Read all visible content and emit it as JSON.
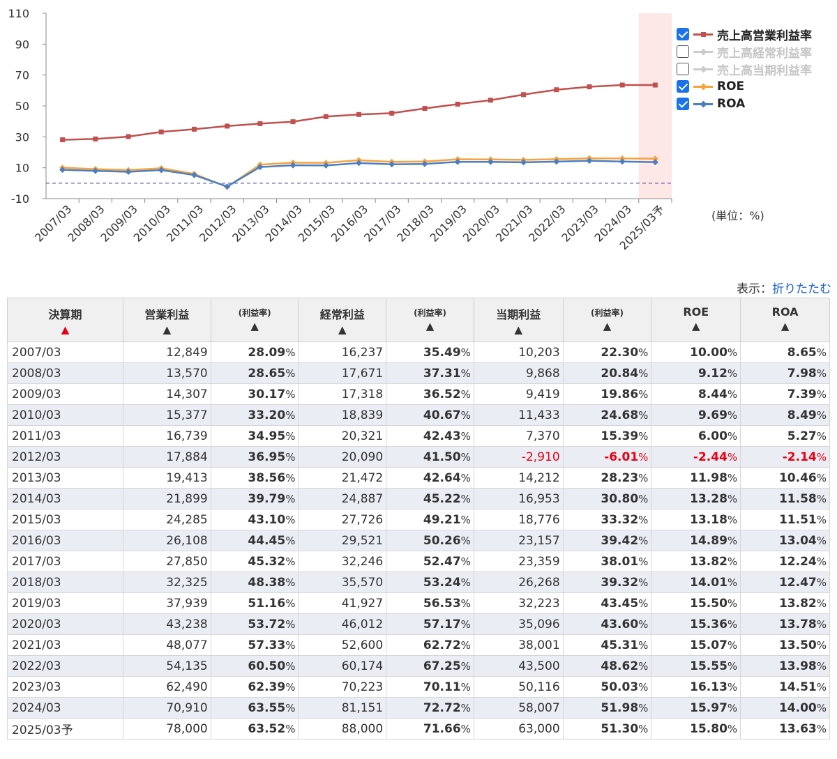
{
  "chart_data": {
    "type": "line",
    "categories": [
      "2007/03",
      "2008/03",
      "2009/03",
      "2010/03",
      "2011/03",
      "2012/03",
      "2013/03",
      "2014/03",
      "2015/03",
      "2016/03",
      "2017/03",
      "2018/03",
      "2019/03",
      "2020/03",
      "2021/03",
      "2022/03",
      "2023/03",
      "2024/03",
      "2025/03予"
    ],
    "ylim": [
      -10,
      110
    ],
    "yticks": [
      "110",
      "90",
      "70",
      "50",
      "30",
      "10",
      "-10"
    ],
    "highlight_category": "2025/03予",
    "reference_line": 0,
    "series": [
      {
        "name": "売上高営業利益率",
        "checked": true,
        "visible": true,
        "color": "#c0504d",
        "marker": "square",
        "values": [
          28.09,
          28.65,
          30.17,
          33.2,
          34.95,
          36.95,
          38.56,
          39.79,
          43.1,
          44.45,
          45.32,
          48.38,
          51.16,
          53.72,
          57.33,
          60.5,
          62.39,
          63.55,
          63.52
        ]
      },
      {
        "name": "売上高経常利益率",
        "checked": false,
        "visible": false,
        "color": "#cccccc",
        "marker": "triangle",
        "values": [
          35.49,
          37.31,
          36.52,
          40.67,
          42.43,
          41.5,
          42.64,
          45.22,
          49.21,
          50.26,
          52.47,
          53.24,
          56.53,
          57.17,
          62.72,
          67.25,
          70.11,
          72.72,
          71.66
        ]
      },
      {
        "name": "売上高当期利益率",
        "checked": false,
        "visible": false,
        "color": "#cccccc",
        "marker": "triangle",
        "values": [
          22.3,
          20.84,
          19.86,
          24.68,
          15.39,
          -6.01,
          28.23,
          30.8,
          33.32,
          39.42,
          38.01,
          39.32,
          43.45,
          43.6,
          45.31,
          48.62,
          50.03,
          51.98,
          51.3
        ]
      },
      {
        "name": "ROE",
        "checked": true,
        "visible": true,
        "color": "#f7a23b",
        "marker": "diamond",
        "values": [
          10.0,
          9.12,
          8.44,
          9.69,
          6.0,
          -2.44,
          11.98,
          13.28,
          13.18,
          14.89,
          13.82,
          14.01,
          15.5,
          15.36,
          15.07,
          15.55,
          16.13,
          15.97,
          15.8
        ]
      },
      {
        "name": "ROA",
        "checked": true,
        "visible": true,
        "color": "#4a7fc1",
        "marker": "diamond",
        "values": [
          8.65,
          7.98,
          7.39,
          8.49,
          5.27,
          -2.14,
          10.46,
          11.58,
          11.51,
          13.04,
          12.24,
          12.47,
          13.82,
          13.78,
          13.5,
          13.98,
          14.51,
          14.0,
          13.63
        ]
      }
    ]
  },
  "unit_label": "(単位：%)",
  "display_toggle": {
    "label": "表示：",
    "link": "折りたたむ"
  },
  "table": {
    "headers": [
      {
        "label": "決算期",
        "sub": "",
        "sort_arrow": "▲",
        "active": true
      },
      {
        "label": "営業利益",
        "sub": "",
        "sort_arrow": "▲",
        "active": false
      },
      {
        "label": "",
        "sub": "(利益率)",
        "sort_arrow": "▲",
        "active": false
      },
      {
        "label": "経常利益",
        "sub": "",
        "sort_arrow": "▲",
        "active": false
      },
      {
        "label": "",
        "sub": "(利益率)",
        "sort_arrow": "▲",
        "active": false
      },
      {
        "label": "当期利益",
        "sub": "",
        "sort_arrow": "▲",
        "active": false
      },
      {
        "label": "",
        "sub": "(利益率)",
        "sort_arrow": "▲",
        "active": false
      },
      {
        "label": "ROE",
        "sub": "",
        "sort_arrow": "▲",
        "active": false
      },
      {
        "label": "ROA",
        "sub": "",
        "sort_arrow": "▲",
        "active": false
      }
    ],
    "percent_sign": "%",
    "rows": [
      [
        "2007/03",
        "12,849",
        "28.09",
        "16,237",
        "35.49",
        "10,203",
        "22.30",
        "10.00",
        "8.65"
      ],
      [
        "2008/03",
        "13,570",
        "28.65",
        "17,671",
        "37.31",
        "9,868",
        "20.84",
        "9.12",
        "7.98"
      ],
      [
        "2009/03",
        "14,307",
        "30.17",
        "17,318",
        "36.52",
        "9,419",
        "19.86",
        "8.44",
        "7.39"
      ],
      [
        "2010/03",
        "15,377",
        "33.20",
        "18,839",
        "40.67",
        "11,433",
        "24.68",
        "9.69",
        "8.49"
      ],
      [
        "2011/03",
        "16,739",
        "34.95",
        "20,321",
        "42.43",
        "7,370",
        "15.39",
        "6.00",
        "5.27"
      ],
      [
        "2012/03",
        "17,884",
        "36.95",
        "20,090",
        "41.50",
        "-2,910",
        "-6.01",
        "-2.44",
        "-2.14"
      ],
      [
        "2013/03",
        "19,413",
        "38.56",
        "21,472",
        "42.64",
        "14,212",
        "28.23",
        "11.98",
        "10.46"
      ],
      [
        "2014/03",
        "21,899",
        "39.79",
        "24,887",
        "45.22",
        "16,953",
        "30.80",
        "13.28",
        "11.58"
      ],
      [
        "2015/03",
        "24,285",
        "43.10",
        "27,726",
        "49.21",
        "18,776",
        "33.32",
        "13.18",
        "11.51"
      ],
      [
        "2016/03",
        "26,108",
        "44.45",
        "29,521",
        "50.26",
        "23,157",
        "39.42",
        "14.89",
        "13.04"
      ],
      [
        "2017/03",
        "27,850",
        "45.32",
        "32,246",
        "52.47",
        "23,359",
        "38.01",
        "13.82",
        "12.24"
      ],
      [
        "2018/03",
        "32,325",
        "48.38",
        "35,570",
        "53.24",
        "26,268",
        "39.32",
        "14.01",
        "12.47"
      ],
      [
        "2019/03",
        "37,939",
        "51.16",
        "41,927",
        "56.53",
        "32,223",
        "43.45",
        "15.50",
        "13.82"
      ],
      [
        "2020/03",
        "43,238",
        "53.72",
        "46,012",
        "57.17",
        "35,096",
        "43.60",
        "15.36",
        "13.78"
      ],
      [
        "2021/03",
        "48,077",
        "57.33",
        "52,600",
        "62.72",
        "38,001",
        "45.31",
        "15.07",
        "13.50"
      ],
      [
        "2022/03",
        "54,135",
        "60.50",
        "60,174",
        "67.25",
        "43,500",
        "48.62",
        "15.55",
        "13.98"
      ],
      [
        "2023/03",
        "62,490",
        "62.39",
        "70,223",
        "70.11",
        "50,116",
        "50.03",
        "16.13",
        "14.51"
      ],
      [
        "2024/03",
        "70,910",
        "63.55",
        "81,151",
        "72.72",
        "58,007",
        "51.98",
        "15.97",
        "14.00"
      ],
      [
        "2025/03予",
        "78,000",
        "63.52",
        "88,000",
        "71.66",
        "63,000",
        "51.30",
        "15.80",
        "13.63"
      ]
    ]
  }
}
